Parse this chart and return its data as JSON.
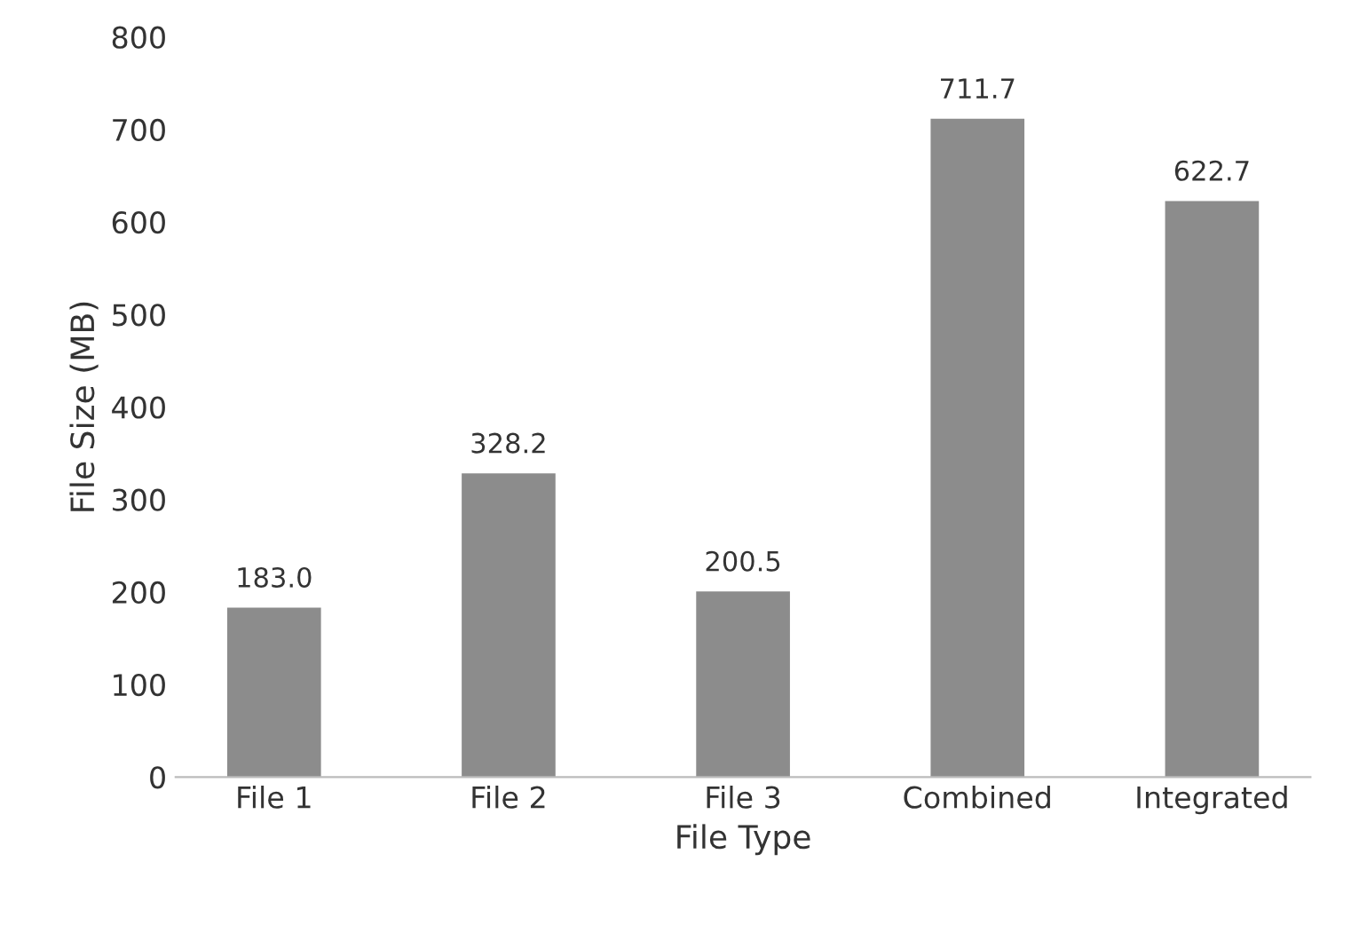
{
  "chart_data": {
    "type": "bar",
    "xlabel": "File Type",
    "ylabel": "File Size (MB)",
    "categories": [
      "File 1",
      "File 2",
      "File 3",
      "Combined",
      "Integrated"
    ],
    "values": [
      183.0,
      328.2,
      200.5,
      711.7,
      622.7
    ],
    "color": "#8c8c8c",
    "ylim": [
      0,
      800
    ],
    "yticks": [
      0,
      100,
      200,
      300,
      400,
      500,
      600,
      700,
      800
    ],
    "value_labels": [
      "183.0",
      "328.2",
      "200.5",
      "711.7",
      "622.7"
    ],
    "grid": false,
    "legend": false
  }
}
